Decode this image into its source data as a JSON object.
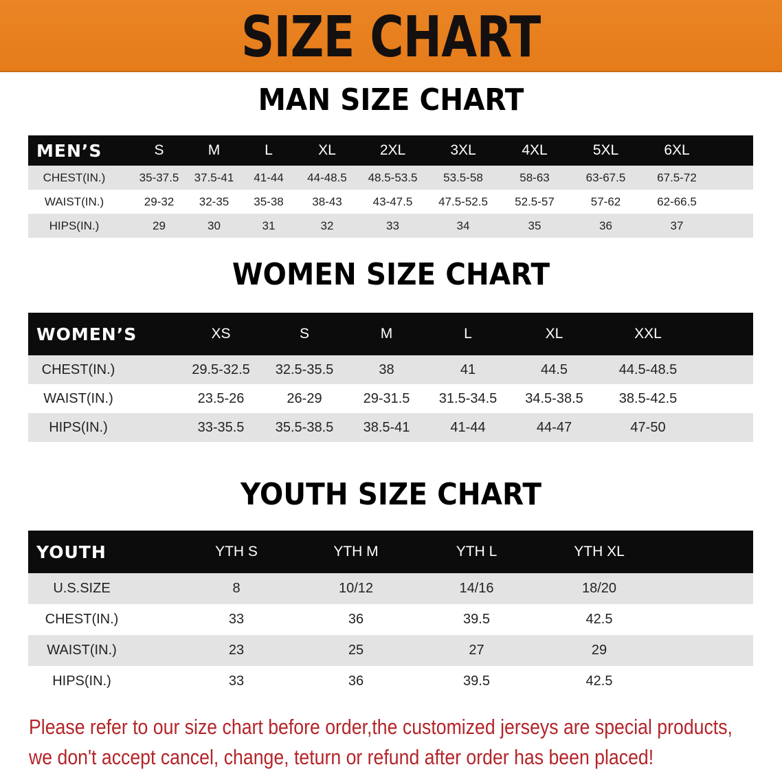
{
  "banner": {
    "title": "SIZE CHART",
    "color": "#e8801e"
  },
  "men": {
    "title": "MAN SIZE CHART",
    "header": [
      "MEN’S",
      "S",
      "M",
      "L",
      "XL",
      "2XL",
      "3XL",
      "4XL",
      "5XL",
      "6XL"
    ],
    "rows": [
      [
        "CHEST(IN.)",
        "35-37.5",
        "37.5-41",
        "41-44",
        "44-48.5",
        "48.5-53.5",
        "53.5-58",
        "58-63",
        "63-67.5",
        "67.5-72"
      ],
      [
        "WAIST(IN.)",
        "29-32",
        "32-35",
        "35-38",
        "38-43",
        "43-47.5",
        "47.5-52.5",
        "52.5-57",
        "57-62",
        "62-66.5"
      ],
      [
        "HIPS(IN.)",
        "29",
        "30",
        "31",
        "32",
        "33",
        "34",
        "35",
        "36",
        "37"
      ]
    ]
  },
  "women": {
    "title": "WOMEN SIZE CHART",
    "header": [
      "WOMEN’S",
      "XS",
      "S",
      "M",
      "L",
      "XL",
      "XXL"
    ],
    "rows": [
      [
        "CHEST(IN.)",
        "29.5-32.5",
        "32.5-35.5",
        "38",
        "41",
        "44.5",
        "44.5-48.5"
      ],
      [
        "WAIST(IN.)",
        "23.5-26",
        "26-29",
        "29-31.5",
        "31.5-34.5",
        "34.5-38.5",
        "38.5-42.5"
      ],
      [
        "HIPS(IN.)",
        "33-35.5",
        "35.5-38.5",
        "38.5-41",
        "41-44",
        "44-47",
        "47-50"
      ]
    ]
  },
  "youth": {
    "title": "YOUTH SIZE CHART",
    "header": [
      "YOUTH",
      "YTH S",
      "YTH M",
      "YTH L",
      "YTH XL"
    ],
    "rows": [
      [
        "U.S.SIZE",
        "8",
        "10/12",
        "14/16",
        "18/20"
      ],
      [
        "CHEST(IN.)",
        "33",
        "36",
        "39.5",
        "42.5"
      ],
      [
        "WAIST(IN.)",
        "23",
        "25",
        "27",
        "29"
      ],
      [
        "HIPS(IN.)",
        "33",
        "36",
        "39.5",
        "42.5"
      ]
    ]
  },
  "note": {
    "line1": "Please refer to our size chart before order,the customized jerseys are special products,",
    "line2": "we don't accept cancel, change, teturn or refund after order has been placed!",
    "color": "#b3252a"
  }
}
